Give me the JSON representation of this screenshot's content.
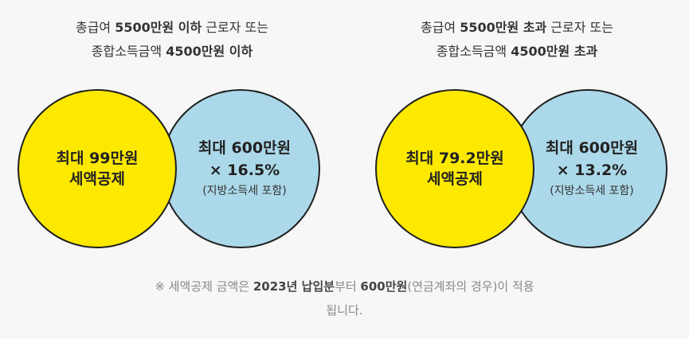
{
  "left": {
    "header_line1_a": "총급여 ",
    "header_line1_b": "5500만원 이하",
    "header_line1_c": " 근로자 또는",
    "header_line2_a": "종합소득금액 ",
    "header_line2_b": "4500만원 이하",
    "yellow_line1": "최대 99만원",
    "yellow_line2": "세액공제",
    "blue_line1": "최대 600만원",
    "blue_line2": "× 16.5%",
    "blue_line3": "(지방소득세 포함)"
  },
  "right": {
    "header_line1_a": "총급여 ",
    "header_line1_b": "5500만원 초과",
    "header_line1_c": "  근로자 또는",
    "header_line2_a": "종합소득금액 ",
    "header_line2_b": "4500만원 초과",
    "yellow_line1": "최대 79.2만원",
    "yellow_line2": "세액공제",
    "blue_line1": "최대 600만원",
    "blue_line2": "× 13.2%",
    "blue_line3": "(지방소득세 포함)"
  },
  "note": {
    "a": "※ 세액공제 금액은 ",
    "b": "2023년 납입분",
    "c": "부터 ",
    "d": "600만원",
    "e": "(연금계좌의 경우)이 적용",
    "f": "됩니다."
  },
  "colors": {
    "yellow": "#fde900",
    "blue": "#acd9ea",
    "background": "#f7f7f7"
  }
}
